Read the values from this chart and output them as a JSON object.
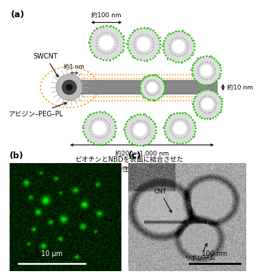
{
  "panel_a_label": "(a)",
  "panel_b_label": "(b)",
  "panel_c_label": "(c)",
  "label_swcnt": "SWCNT",
  "label_avidin": "アビジン–PEG–PL",
  "label_100nm": "約100 nm",
  "label_1nm": "約1 nm",
  "label_10nm": "約10 nm",
  "label_200_1000nm": "約200～1,000 nm",
  "label_liposome_desc": "ビオチンとNBDを表面に結合させた\n温度感受性リポソーム",
  "label_ribosomes": "リボソーム",
  "label_cnt": "CNT",
  "label_10um": "10 μm",
  "label_100nm_c": "100 nm",
  "orange_color": "#FF8800",
  "green_color": "#22CC00",
  "purple_color": "#7744BB",
  "cnt_color": "#777777",
  "white_color": "#FFFFFF",
  "black_color": "#000000"
}
